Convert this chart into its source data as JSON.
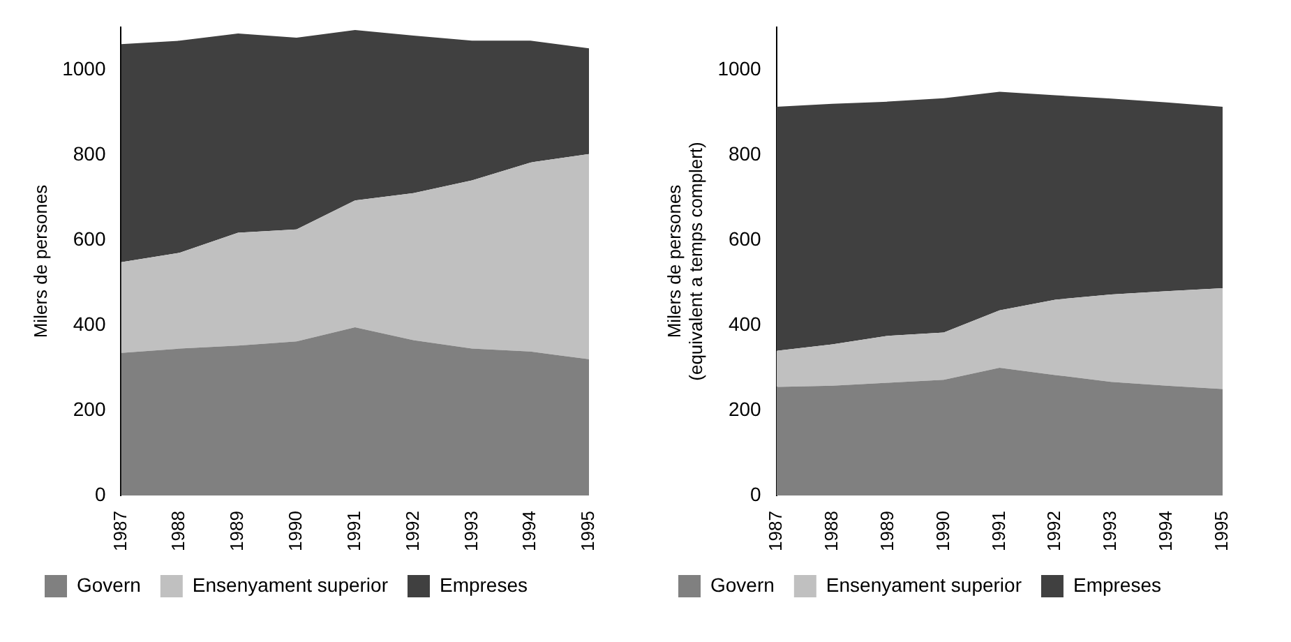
{
  "chart_data": [
    {
      "type": "area",
      "stacked": true,
      "ylabel": "Milers de persones",
      "categories": [
        "1987",
        "1988",
        "1989",
        "1990",
        "1991",
        "1992",
        "1993",
        "1994",
        "1995"
      ],
      "ylim": [
        0,
        1100
      ],
      "yticks": [
        0,
        200,
        400,
        600,
        800,
        1000
      ],
      "grid": false,
      "legend": "bottom",
      "series": [
        {
          "name": "Govern",
          "color": "#808080",
          "values": [
            335,
            345,
            352,
            362,
            395,
            365,
            345,
            338,
            320
          ]
        },
        {
          "name": "Ensenyament superior",
          "color": "#c0c0c0",
          "values": [
            213,
            225,
            265,
            263,
            298,
            345,
            395,
            444,
            482
          ]
        },
        {
          "name": "Empreses",
          "color": "#404040",
          "values": [
            512,
            498,
            468,
            450,
            400,
            370,
            328,
            286,
            248
          ]
        }
      ]
    },
    {
      "type": "area",
      "stacked": true,
      "ylabel": "Milers de persones\n(equivalent a temps complert)",
      "categories": [
        "1987",
        "1988",
        "1989",
        "1990",
        "1991",
        "1992",
        "1993",
        "1994",
        "1995"
      ],
      "ylim": [
        0,
        1100
      ],
      "yticks": [
        0,
        200,
        400,
        600,
        800,
        1000
      ],
      "grid": false,
      "legend": "bottom",
      "series": [
        {
          "name": "Govern",
          "color": "#808080",
          "values": [
            255,
            258,
            265,
            272,
            300,
            283,
            267,
            258,
            250
          ]
        },
        {
          "name": "Ensenyament superior",
          "color": "#c0c0c0",
          "values": [
            85,
            97,
            110,
            111,
            135,
            177,
            205,
            222,
            237
          ]
        },
        {
          "name": "Empreses",
          "color": "#404040",
          "values": [
            573,
            565,
            550,
            550,
            513,
            480,
            460,
            443,
            426
          ]
        }
      ]
    }
  ]
}
